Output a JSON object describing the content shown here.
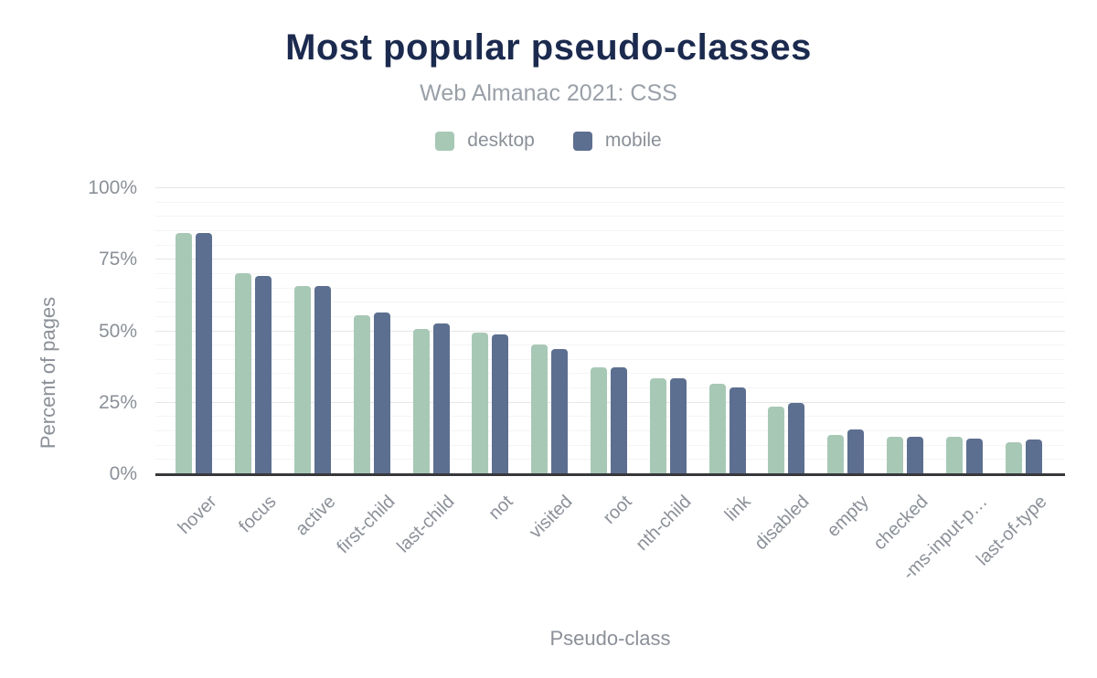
{
  "chart_data": {
    "type": "bar",
    "title": "Most popular pseudo-classes",
    "subtitle": "Web Almanac 2021: CSS",
    "xlabel": "Pseudo-class",
    "ylabel": "Percent of pages",
    "ylim": [
      0,
      100
    ],
    "yticks": [
      0,
      25,
      50,
      75,
      100
    ],
    "ytick_suffix": "%",
    "grid": true,
    "minor_grid_step": 5,
    "major_grid_step": 25,
    "legend_position": "top",
    "categories": [
      "hover",
      "focus",
      "active",
      "first-child",
      "last-child",
      "not",
      "visited",
      "root",
      "nth-child",
      "link",
      "disabled",
      "empty",
      "checked",
      "-ms-input-p…",
      "last-of-type"
    ],
    "series": [
      {
        "name": "desktop",
        "color": "#a8c8b6",
        "values": [
          84.4,
          70.4,
          65.9,
          55.7,
          50.9,
          49.6,
          45.3,
          37.4,
          33.7,
          31.6,
          23.7,
          13.6,
          13.0,
          13.2,
          11.2
        ]
      },
      {
        "name": "mobile",
        "color": "#5d6f90",
        "values": [
          84.3,
          69.3,
          65.9,
          56.4,
          52.6,
          48.8,
          43.8,
          37.3,
          33.6,
          30.3,
          24.8,
          15.6,
          13.0,
          12.5,
          12.0
        ]
      }
    ],
    "colors": {
      "title": "#1b2a4e",
      "axis_text": "#8b9098",
      "axis_line": "#37383b",
      "grid_major": "#e6e6e6",
      "grid_minor": "#f4f4f4",
      "background": "#ffffff"
    }
  }
}
